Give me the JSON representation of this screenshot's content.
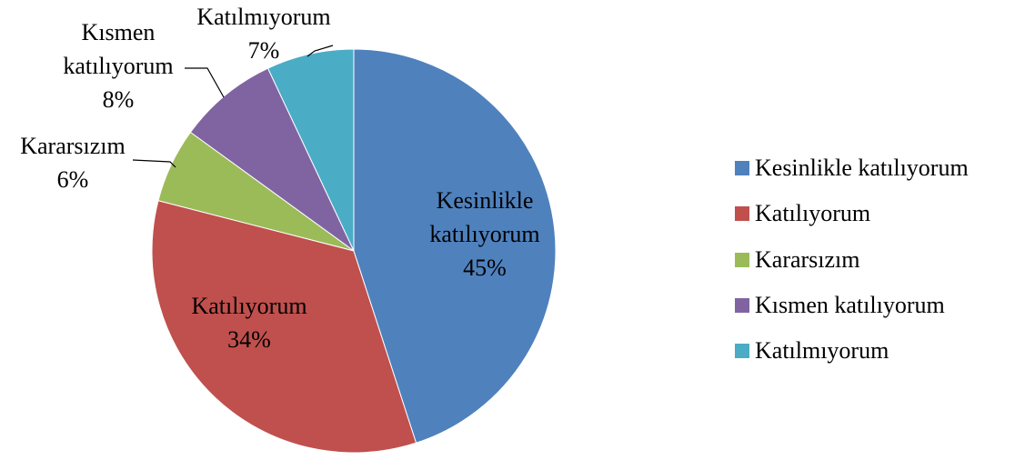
{
  "chart_data": {
    "type": "pie",
    "categories": [
      "Kesinlikle katılıyorum",
      "Katılıyorum",
      "Kararsızım",
      "Kısmen katılıyorum",
      "Katılmıyorum"
    ],
    "values": [
      45,
      34,
      6,
      8,
      7
    ],
    "value_labels": [
      "45%",
      "34%",
      "6%",
      "8%",
      "7%"
    ],
    "colors": [
      "#4f81bd",
      "#c0504d",
      "#9bbb59",
      "#8064a2",
      "#4bacc6"
    ],
    "legend": "right"
  }
}
